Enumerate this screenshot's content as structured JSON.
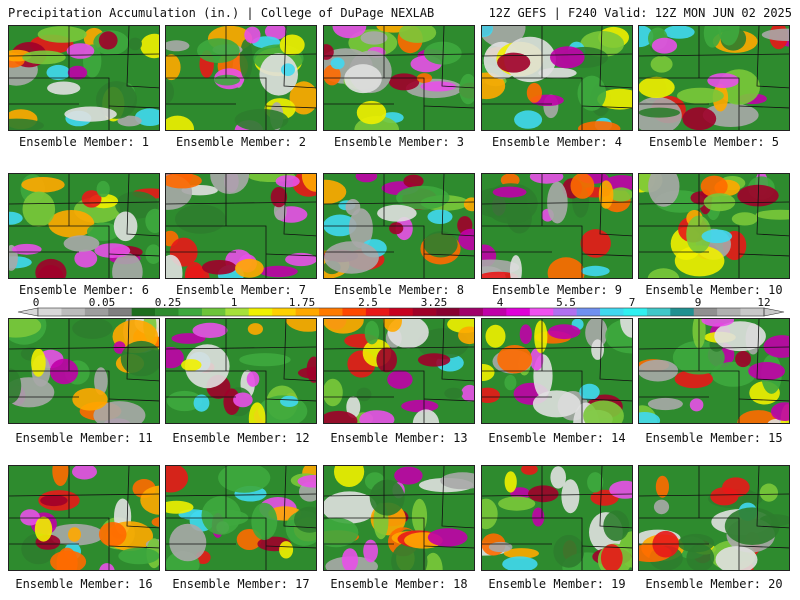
{
  "header": {
    "title_left": "Precipitation Accumulation (in.) | College of DuPage NEXLAB",
    "title_right": "12Z GEFS | F240 Valid: 12Z MON JUN 02 2025"
  },
  "panels": [
    {
      "label": "Ensemble Member: 1"
    },
    {
      "label": "Ensemble Member: 2"
    },
    {
      "label": "Ensemble Member: 3"
    },
    {
      "label": "Ensemble Member: 4"
    },
    {
      "label": "Ensemble Member: 5"
    },
    {
      "label": "Ensemble Member: 6"
    },
    {
      "label": "Ensemble Member: 7"
    },
    {
      "label": "Ensemble Member: 8"
    },
    {
      "label": "Ensemble Member: 9"
    },
    {
      "label": "Ensemble Member: 10"
    },
    {
      "label": "Ensemble Member: 11"
    },
    {
      "label": "Ensemble Member: 12"
    },
    {
      "label": "Ensemble Member: 13"
    },
    {
      "label": "Ensemble Member: 14"
    },
    {
      "label": "Ensemble Member: 15"
    },
    {
      "label": "Ensemble Member: 16"
    },
    {
      "label": "Ensemble Member: 17"
    },
    {
      "label": "Ensemble Member: 18"
    },
    {
      "label": "Ensemble Member: 19"
    },
    {
      "label": "Ensemble Member: 20"
    }
  ],
  "colorbar": {
    "tick_labels": [
      "0",
      "0.05",
      "0.25",
      "1",
      "1.75",
      "2.5",
      "3.25",
      "4",
      "5.5",
      "7",
      "9",
      "12"
    ],
    "colors": [
      "#d8d8d8",
      "#bcbcbc",
      "#9e9e9e",
      "#7f7f7f",
      "#1e6e1e",
      "#2e8b2e",
      "#3ea83e",
      "#6cc43a",
      "#a6e03a",
      "#f0f000",
      "#ffd000",
      "#ffa800",
      "#ff7a00",
      "#ff4800",
      "#e81818",
      "#c80020",
      "#a00028",
      "#880030",
      "#a0006a",
      "#c000a8",
      "#e000d8",
      "#f050f0",
      "#b070f0",
      "#7090f0",
      "#40d8f0",
      "#30f0f0",
      "#40c8c8",
      "#209090",
      "#909090",
      "#b0b0b0",
      "#c8c8c8"
    ]
  }
}
